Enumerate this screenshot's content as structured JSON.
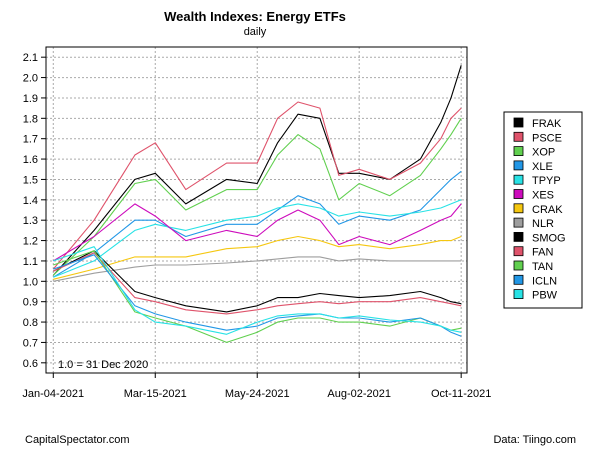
{
  "chart_data": {
    "type": "line",
    "title": "Wealth Indexes: Energy ETFs",
    "subtitle": "daily",
    "annotation": "1.0 = 31 Dec 2020",
    "footer_left": "CapitalSpectator.com",
    "footer_right": "Data: Tiingo.com",
    "x_tick_labels": [
      "Jan-04-2021",
      "Mar-15-2021",
      "May-24-2021",
      "Aug-02-2021",
      "Oct-11-2021"
    ],
    "x_tick_dates": [
      "2021-01-04",
      "2021-03-15",
      "2021-05-24",
      "2021-08-02",
      "2021-10-11"
    ],
    "xlim": [
      "2020-12-30",
      "2021-10-15"
    ],
    "ylim": [
      0.55,
      2.15
    ],
    "y_ticks": [
      0.6,
      0.7,
      0.8,
      0.9,
      1.0,
      1.1,
      1.2,
      1.3,
      1.4,
      1.5,
      1.6,
      1.7,
      1.8,
      1.9,
      2.0,
      2.1
    ],
    "y_tick_labels": [
      "0.6",
      "0.7",
      "0.8",
      "0.9",
      "1.0",
      "1.1",
      "1.2",
      "1.3",
      "1.4",
      "1.5",
      "1.6",
      "1.7",
      "1.8",
      "1.9",
      "2.0",
      "2.1"
    ],
    "grid": true,
    "legend_position": "right",
    "series": [
      {
        "name": "FRAK",
        "color": "#000000",
        "x": [
          "2021-01-04",
          "2021-02-01",
          "2021-03-01",
          "2021-03-15",
          "2021-04-05",
          "2021-05-03",
          "2021-05-24",
          "2021-06-07",
          "2021-06-21",
          "2021-07-06",
          "2021-07-19",
          "2021-08-02",
          "2021-08-23",
          "2021-09-13",
          "2021-09-27",
          "2021-10-04",
          "2021-10-11"
        ],
        "values": [
          1.03,
          1.25,
          1.5,
          1.53,
          1.38,
          1.5,
          1.48,
          1.68,
          1.82,
          1.8,
          1.53,
          1.53,
          1.5,
          1.6,
          1.78,
          1.9,
          2.06
        ]
      },
      {
        "name": "PSCE",
        "color": "#DF536B",
        "x": [
          "2021-01-04",
          "2021-02-01",
          "2021-03-01",
          "2021-03-15",
          "2021-04-05",
          "2021-05-03",
          "2021-05-24",
          "2021-06-07",
          "2021-06-21",
          "2021-07-06",
          "2021-07-19",
          "2021-08-02",
          "2021-08-23",
          "2021-09-13",
          "2021-09-27",
          "2021-10-04",
          "2021-10-11"
        ],
        "values": [
          1.06,
          1.3,
          1.62,
          1.68,
          1.45,
          1.58,
          1.58,
          1.8,
          1.88,
          1.85,
          1.52,
          1.55,
          1.5,
          1.58,
          1.7,
          1.8,
          1.85
        ]
      },
      {
        "name": "XOP",
        "color": "#61D04F",
        "x": [
          "2021-01-04",
          "2021-02-01",
          "2021-03-01",
          "2021-03-15",
          "2021-04-05",
          "2021-05-03",
          "2021-05-24",
          "2021-06-07",
          "2021-06-21",
          "2021-07-06",
          "2021-07-19",
          "2021-08-02",
          "2021-08-23",
          "2021-09-13",
          "2021-09-27",
          "2021-10-04",
          "2021-10-11"
        ],
        "values": [
          1.03,
          1.22,
          1.48,
          1.5,
          1.35,
          1.45,
          1.45,
          1.62,
          1.72,
          1.65,
          1.4,
          1.48,
          1.42,
          1.52,
          1.65,
          1.72,
          1.8
        ]
      },
      {
        "name": "XLE",
        "color": "#2297E6",
        "x": [
          "2021-01-04",
          "2021-02-01",
          "2021-03-01",
          "2021-03-15",
          "2021-04-05",
          "2021-05-03",
          "2021-05-24",
          "2021-06-07",
          "2021-06-21",
          "2021-07-06",
          "2021-07-19",
          "2021-08-02",
          "2021-08-23",
          "2021-09-13",
          "2021-09-27",
          "2021-10-04",
          "2021-10-11"
        ],
        "values": [
          1.02,
          1.14,
          1.3,
          1.3,
          1.22,
          1.28,
          1.28,
          1.35,
          1.42,
          1.38,
          1.28,
          1.32,
          1.3,
          1.35,
          1.45,
          1.5,
          1.54
        ]
      },
      {
        "name": "TPYP",
        "color": "#28E2E5",
        "x": [
          "2021-01-04",
          "2021-02-01",
          "2021-03-01",
          "2021-03-15",
          "2021-04-05",
          "2021-05-03",
          "2021-05-24",
          "2021-06-07",
          "2021-06-21",
          "2021-07-06",
          "2021-07-19",
          "2021-08-02",
          "2021-08-23",
          "2021-09-13",
          "2021-09-27",
          "2021-10-04",
          "2021-10-11"
        ],
        "values": [
          1.02,
          1.1,
          1.25,
          1.28,
          1.25,
          1.3,
          1.32,
          1.36,
          1.38,
          1.36,
          1.32,
          1.34,
          1.32,
          1.34,
          1.36,
          1.38,
          1.4
        ]
      },
      {
        "name": "XES",
        "color": "#CD0BBC",
        "x": [
          "2021-01-04",
          "2021-02-01",
          "2021-03-01",
          "2021-03-15",
          "2021-04-05",
          "2021-05-03",
          "2021-05-24",
          "2021-06-07",
          "2021-06-21",
          "2021-07-06",
          "2021-07-19",
          "2021-08-02",
          "2021-08-23",
          "2021-09-13",
          "2021-09-27",
          "2021-10-04",
          "2021-10-11"
        ],
        "values": [
          1.1,
          1.22,
          1.38,
          1.32,
          1.2,
          1.25,
          1.22,
          1.3,
          1.35,
          1.3,
          1.18,
          1.22,
          1.18,
          1.25,
          1.3,
          1.32,
          1.38
        ]
      },
      {
        "name": "CRAK",
        "color": "#F5C710",
        "x": [
          "2021-01-04",
          "2021-02-01",
          "2021-03-01",
          "2021-03-15",
          "2021-04-05",
          "2021-05-03",
          "2021-05-24",
          "2021-06-07",
          "2021-06-21",
          "2021-07-06",
          "2021-07-19",
          "2021-08-02",
          "2021-08-23",
          "2021-09-13",
          "2021-09-27",
          "2021-10-04",
          "2021-10-11"
        ],
        "values": [
          1.01,
          1.06,
          1.12,
          1.12,
          1.12,
          1.16,
          1.17,
          1.2,
          1.22,
          1.2,
          1.17,
          1.18,
          1.16,
          1.18,
          1.2,
          1.2,
          1.22
        ]
      },
      {
        "name": "NLR",
        "color": "#9E9E9E",
        "x": [
          "2021-01-04",
          "2021-02-01",
          "2021-03-01",
          "2021-03-15",
          "2021-04-05",
          "2021-05-03",
          "2021-05-24",
          "2021-06-07",
          "2021-06-21",
          "2021-07-06",
          "2021-07-19",
          "2021-08-02",
          "2021-08-23",
          "2021-09-13",
          "2021-09-27",
          "2021-10-04",
          "2021-10-11"
        ],
        "values": [
          1.0,
          1.04,
          1.07,
          1.08,
          1.08,
          1.09,
          1.1,
          1.11,
          1.12,
          1.12,
          1.1,
          1.11,
          1.1,
          1.1,
          1.1,
          1.1,
          1.1
        ]
      },
      {
        "name": "SMOG",
        "color": "#000000",
        "x": [
          "2021-01-04",
          "2021-02-01",
          "2021-03-01",
          "2021-03-15",
          "2021-04-05",
          "2021-05-03",
          "2021-05-24",
          "2021-06-07",
          "2021-06-21",
          "2021-07-06",
          "2021-07-19",
          "2021-08-02",
          "2021-08-23",
          "2021-09-13",
          "2021-09-27",
          "2021-10-04",
          "2021-10-11"
        ],
        "values": [
          1.05,
          1.15,
          0.95,
          0.92,
          0.88,
          0.85,
          0.88,
          0.92,
          0.92,
          0.94,
          0.93,
          0.92,
          0.93,
          0.95,
          0.92,
          0.9,
          0.89
        ]
      },
      {
        "name": "FAN",
        "color": "#DF536B",
        "x": [
          "2021-01-04",
          "2021-02-01",
          "2021-03-01",
          "2021-03-15",
          "2021-04-05",
          "2021-05-03",
          "2021-05-24",
          "2021-06-07",
          "2021-06-21",
          "2021-07-06",
          "2021-07-19",
          "2021-08-02",
          "2021-08-23",
          "2021-09-13",
          "2021-09-27",
          "2021-10-04",
          "2021-10-11"
        ],
        "values": [
          1.05,
          1.14,
          0.92,
          0.9,
          0.86,
          0.84,
          0.86,
          0.88,
          0.89,
          0.9,
          0.89,
          0.9,
          0.9,
          0.92,
          0.9,
          0.89,
          0.88
        ]
      },
      {
        "name": "TAN",
        "color": "#61D04F",
        "x": [
          "2021-01-04",
          "2021-02-01",
          "2021-03-01",
          "2021-03-15",
          "2021-04-05",
          "2021-05-03",
          "2021-05-24",
          "2021-06-07",
          "2021-06-21",
          "2021-07-06",
          "2021-07-19",
          "2021-08-02",
          "2021-08-23",
          "2021-09-13",
          "2021-09-27",
          "2021-10-04",
          "2021-10-11"
        ],
        "values": [
          1.08,
          1.15,
          0.85,
          0.82,
          0.78,
          0.7,
          0.75,
          0.8,
          0.82,
          0.82,
          0.8,
          0.8,
          0.78,
          0.82,
          0.78,
          0.76,
          0.77
        ]
      },
      {
        "name": "ICLN",
        "color": "#2297E6",
        "x": [
          "2021-01-04",
          "2021-02-01",
          "2021-03-01",
          "2021-03-15",
          "2021-04-05",
          "2021-05-03",
          "2021-05-24",
          "2021-06-07",
          "2021-06-21",
          "2021-07-06",
          "2021-07-19",
          "2021-08-02",
          "2021-08-23",
          "2021-09-13",
          "2021-09-27",
          "2021-10-04",
          "2021-10-11"
        ],
        "values": [
          1.06,
          1.13,
          0.88,
          0.84,
          0.8,
          0.76,
          0.78,
          0.82,
          0.83,
          0.84,
          0.82,
          0.82,
          0.8,
          0.82,
          0.78,
          0.75,
          0.73
        ]
      },
      {
        "name": "PBW",
        "color": "#28E2E5",
        "x": [
          "2021-01-04",
          "2021-02-01",
          "2021-03-01",
          "2021-03-15",
          "2021-04-05",
          "2021-05-03",
          "2021-05-24",
          "2021-06-07",
          "2021-06-21",
          "2021-07-06",
          "2021-07-19",
          "2021-08-02",
          "2021-08-23",
          "2021-09-13",
          "2021-09-27",
          "2021-10-04",
          "2021-10-11"
        ],
        "values": [
          1.1,
          1.17,
          0.86,
          0.8,
          0.78,
          0.74,
          0.8,
          0.83,
          0.84,
          0.84,
          0.82,
          0.83,
          0.81,
          0.8,
          0.78,
          0.76,
          0.75
        ]
      }
    ]
  }
}
